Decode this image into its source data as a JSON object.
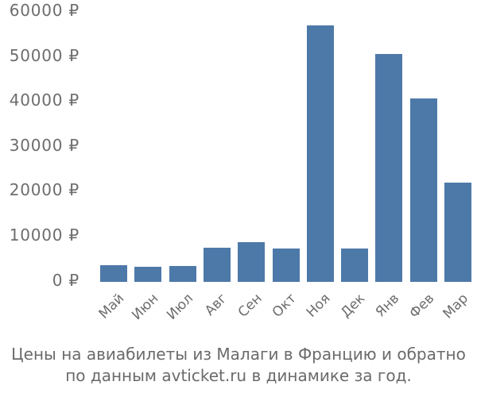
{
  "chart_data": {
    "type": "bar",
    "categories": [
      "Май",
      "Июн",
      "Июл",
      "Авг",
      "Сен",
      "Окт",
      "Ноя",
      "Дек",
      "Янв",
      "Фев",
      "Мар"
    ],
    "values": [
      3600,
      3300,
      3500,
      7500,
      8800,
      7300,
      56700,
      7400,
      50300,
      40500,
      21900
    ],
    "title": "",
    "xlabel": "",
    "ylabel": "",
    "ylim": [
      0,
      60000
    ],
    "ytick_step": 10000,
    "yticks": [
      {
        "value": 0,
        "label": "0 ₽"
      },
      {
        "value": 10000,
        "label": "10000 ₽"
      },
      {
        "value": 20000,
        "label": "20000 ₽"
      },
      {
        "value": 30000,
        "label": "30000 ₽"
      },
      {
        "value": 40000,
        "label": "40000 ₽"
      },
      {
        "value": 50000,
        "label": "50000 ₽"
      },
      {
        "value": 60000,
        "label": "60000 ₽"
      }
    ],
    "grid": false,
    "legend": false,
    "x_label_rotation_deg": 45,
    "bar_color": "#4d79a9",
    "axis_label_color": "#6d6d6d"
  },
  "caption": {
    "line1": "Цены на авиабилеты из Малаги в Францию и обратно",
    "line2": "по данным avticket.ru в динамике за год.",
    "color": "#6a6a6a"
  }
}
